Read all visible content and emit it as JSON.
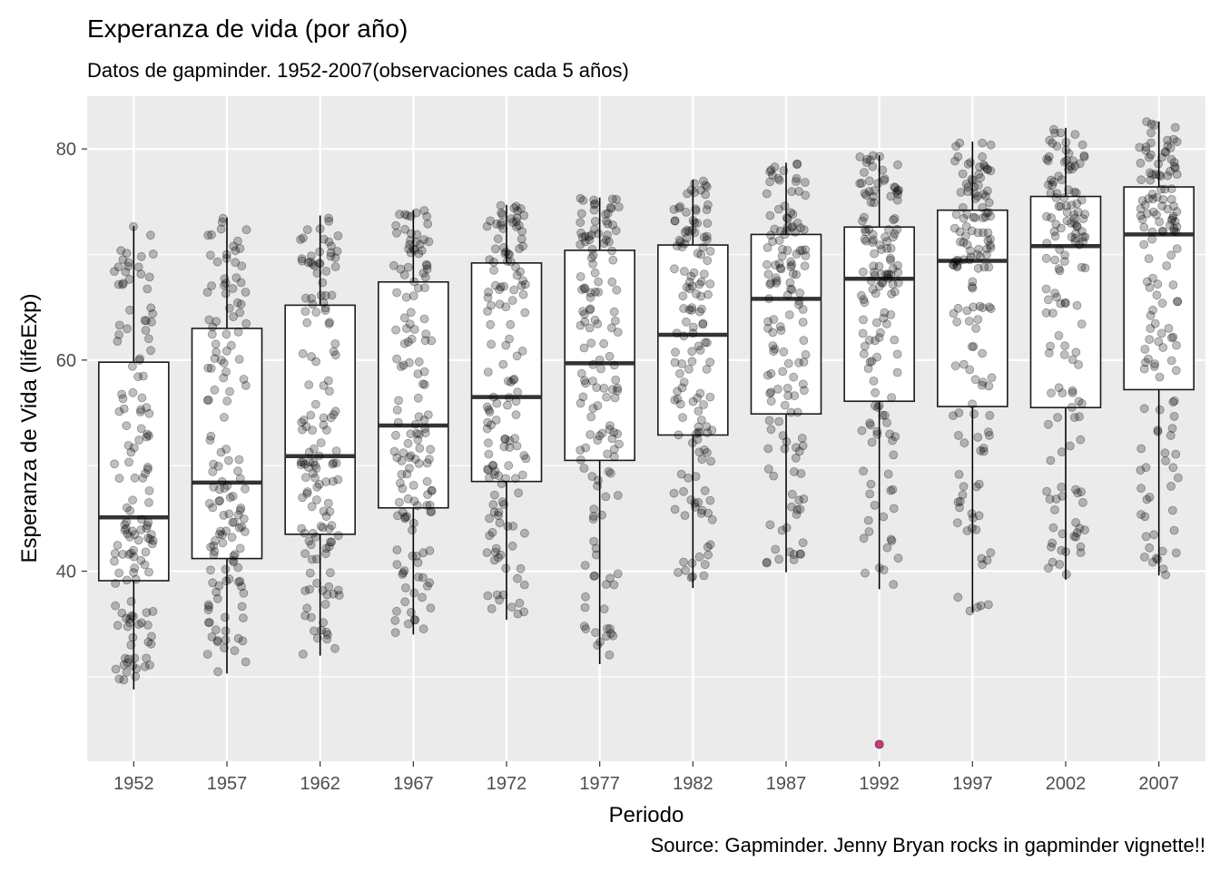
{
  "chart_data": {
    "type": "box",
    "title": "Experanza de vida (por año)",
    "subtitle": "Datos de gapminder. 1952-2007(observaciones cada 5 años)",
    "xlabel": "Periodo",
    "ylabel": "Esperanza de Vida (lifeExp)",
    "caption": "Source: Gapminder. Jenny Bryan rocks in gapminder vignette!!",
    "categories": [
      "1952",
      "1957",
      "1962",
      "1967",
      "1972",
      "1977",
      "1982",
      "1987",
      "1992",
      "1997",
      "2002",
      "2007"
    ],
    "yticks": [
      40,
      60,
      80
    ],
    "ylim": [
      22,
      85
    ],
    "grid": true,
    "background": "#ebebeb",
    "point_color": "#000000",
    "point_opacity": 0.25,
    "outlier_color": "#c0427a",
    "boxes": [
      {
        "q1": 39.1,
        "median": 45.1,
        "q3": 59.8,
        "lower": 28.8,
        "upper": 72.7
      },
      {
        "q1": 41.2,
        "median": 48.4,
        "q3": 63.0,
        "lower": 30.3,
        "upper": 73.5
      },
      {
        "q1": 43.5,
        "median": 50.9,
        "q3": 65.2,
        "lower": 32.0,
        "upper": 73.7
      },
      {
        "q1": 46.0,
        "median": 53.8,
        "q3": 67.4,
        "lower": 34.0,
        "upper": 74.2
      },
      {
        "q1": 48.5,
        "median": 56.5,
        "q3": 69.2,
        "lower": 35.4,
        "upper": 74.7
      },
      {
        "q1": 50.5,
        "median": 59.7,
        "q3": 70.4,
        "lower": 31.2,
        "upper": 75.4
      },
      {
        "q1": 52.9,
        "median": 62.4,
        "q3": 70.9,
        "lower": 38.4,
        "upper": 77.1
      },
      {
        "q1": 54.9,
        "median": 65.8,
        "q3": 71.9,
        "lower": 39.9,
        "upper": 78.7
      },
      {
        "q1": 56.1,
        "median": 67.7,
        "q3": 72.6,
        "lower": 38.3,
        "upper": 79.4,
        "outliers": [
          23.6
        ]
      },
      {
        "q1": 55.6,
        "median": 69.4,
        "q3": 74.2,
        "lower": 36.1,
        "upper": 80.7
      },
      {
        "q1": 55.5,
        "median": 70.8,
        "q3": 75.5,
        "lower": 39.2,
        "upper": 82.0
      },
      {
        "q1": 57.2,
        "median": 71.9,
        "q3": 76.4,
        "lower": 39.6,
        "upper": 82.6
      }
    ],
    "points_per_year": 142
  }
}
